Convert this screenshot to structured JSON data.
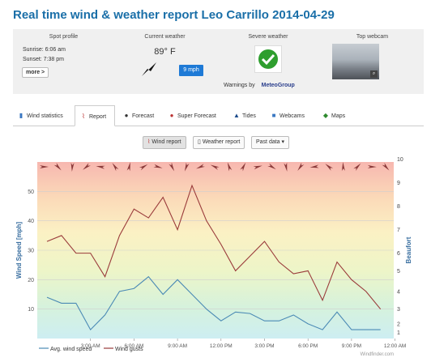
{
  "page": {
    "title": "Real time wind & weather report Leo Carrillo 2014-04-29"
  },
  "spot_profile": {
    "heading": "Spot profile",
    "sunrise": "Sunrise: 6:06 am",
    "sunset": "Sunset: 7:38 pm",
    "more_label": "more >"
  },
  "current_weather": {
    "heading": "Current weather",
    "temperature": "89° F",
    "wind_speed": "9 mph",
    "wind_icon": "wind-direction-arrow-icon"
  },
  "severe_weather": {
    "heading": "Severe weather",
    "status_icon": "checkmark-icon",
    "warnings_label": "Warnings by",
    "provider": "MeteoGroup"
  },
  "webcam": {
    "heading": "Top webcam",
    "zoom_icon": "magnifier-icon"
  },
  "tabs": [
    {
      "label": "Wind statistics",
      "icon": "bar-chart-icon"
    },
    {
      "label": "Report",
      "icon": "wind-report-icon"
    },
    {
      "label": "Forecast",
      "icon": "forecast-icon"
    },
    {
      "label": "Super Forecast",
      "icon": "super-forecast-icon"
    },
    {
      "label": "Tides",
      "icon": "tides-icon"
    },
    {
      "label": "Webcams",
      "icon": "webcam-icon"
    },
    {
      "label": "Maps",
      "icon": "map-icon"
    }
  ],
  "view_buttons": {
    "wind_report": "Wind report",
    "weather_report": "Weather report",
    "past_data": "Past data"
  },
  "chart_data": {
    "type": "line",
    "xlabel": "",
    "ylabel": "Wind Speed [mph]",
    "y2label": "Beaufort",
    "ylim": [
      0,
      60
    ],
    "x_tick_labels": [
      "3:00 AM",
      "6:00 AM",
      "9:00 AM",
      "12:00 PM",
      "3:00 PM",
      "6:00 PM",
      "9:00 PM",
      "12:00 AM"
    ],
    "y_tick_labels": [
      "10",
      "20",
      "30",
      "40",
      "50"
    ],
    "y2_tick_labels": [
      "1",
      "2",
      "3",
      "4",
      "5",
      "6",
      "7",
      "8",
      "9",
      "10"
    ],
    "y2_ticks_mph": [
      2,
      5,
      10,
      16,
      23,
      29,
      37,
      45,
      53,
      61
    ],
    "x_hours": [
      0,
      1,
      2,
      3,
      4,
      5,
      6,
      7,
      8,
      9,
      10,
      11,
      12,
      13,
      14,
      15,
      16,
      17,
      18,
      19,
      20,
      21,
      22,
      23
    ],
    "series": [
      {
        "name": "Avg. wind speed",
        "color": "#4b8ab5",
        "values": [
          14,
          12,
          12,
          3,
          8,
          16,
          17,
          21,
          15,
          20,
          15,
          10,
          6,
          9,
          8.5,
          6,
          6,
          8,
          5,
          3,
          9,
          3,
          3,
          3
        ]
      },
      {
        "name": "Wind gusts",
        "color": "#9a3b3b",
        "values": [
          33,
          35,
          29,
          29,
          21,
          35,
          44,
          41,
          48,
          37,
          52,
          40,
          32,
          23,
          28,
          33,
          26,
          22,
          23,
          13,
          26,
          20,
          16,
          10
        ]
      }
    ],
    "legend": "bottom-left",
    "watermark": "Windfinder.com",
    "background": "beaufort-color-bands",
    "direction_arrow_color": "#8a3a3a"
  }
}
